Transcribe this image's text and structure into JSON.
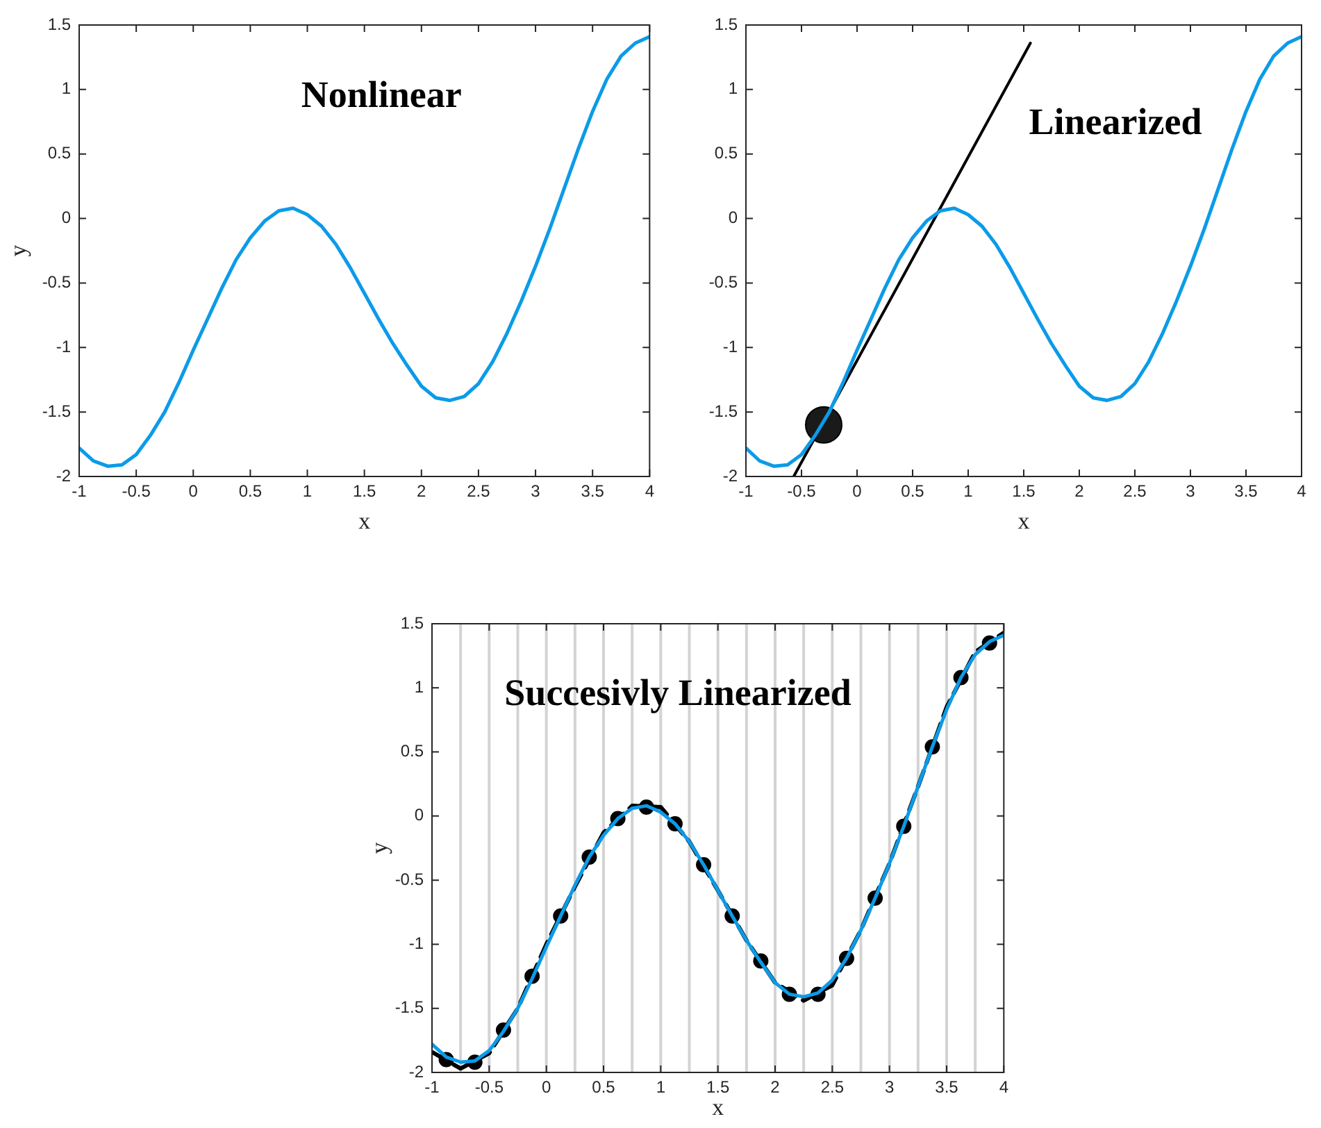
{
  "chart_data": [
    {
      "type": "line",
      "xlabel": "x",
      "ylabel": "y",
      "annotations": [
        "Nonlinear"
      ],
      "x": [
        -1,
        -0.875,
        -0.75,
        -0.625,
        -0.5,
        -0.375,
        -0.25,
        -0.125,
        0,
        0.125,
        0.25,
        0.375,
        0.5,
        0.625,
        0.75,
        0.875,
        1,
        1.125,
        1.25,
        1.375,
        1.5,
        1.625,
        1.75,
        1.875,
        2,
        2.125,
        2.25,
        2.375,
        2.5,
        2.625,
        2.75,
        2.875,
        3,
        3.125,
        3.25,
        3.375,
        3.5,
        3.625,
        3.75,
        3.875,
        4
      ],
      "series": [
        {
          "type": "line",
          "color": "#0b9be8",
          "marker": "none",
          "line_style": "solid",
          "values": [
            -1.78,
            -1.88,
            -1.92,
            -1.91,
            -1.83,
            -1.68,
            -1.5,
            -1.27,
            -1.02,
            -0.78,
            -0.54,
            -0.32,
            -0.15,
            -0.02,
            0.06,
            0.08,
            0.03,
            -0.06,
            -0.2,
            -0.38,
            -0.58,
            -0.78,
            -0.97,
            -1.14,
            -1.3,
            -1.39,
            -1.41,
            -1.38,
            -1.28,
            -1.11,
            -0.89,
            -0.64,
            -0.37,
            -0.08,
            0.23,
            0.54,
            0.83,
            1.08,
            1.26,
            1.36,
            1.41
          ]
        }
      ],
      "xlim": [
        -1,
        4
      ],
      "ylim": [
        -2,
        1.5
      ],
      "xticks": [
        -1,
        -0.5,
        0,
        0.5,
        1,
        1.5,
        2,
        2.5,
        3,
        3.5,
        4
      ],
      "yticks": [
        -2,
        -1.5,
        -1,
        -0.5,
        0,
        0.5,
        1,
        1.5
      ]
    },
    {
      "type": "line",
      "xlabel": "x",
      "annotations": [
        "Linearized"
      ],
      "x": [
        -1,
        -0.875,
        -0.75,
        -0.625,
        -0.5,
        -0.375,
        -0.25,
        -0.125,
        0,
        0.125,
        0.25,
        0.375,
        0.5,
        0.625,
        0.75,
        0.875,
        1,
        1.125,
        1.25,
        1.375,
        1.5,
        1.625,
        1.75,
        1.875,
        2,
        2.125,
        2.25,
        2.375,
        2.5,
        2.625,
        2.75,
        2.875,
        3,
        3.125,
        3.25,
        3.375,
        3.5,
        3.625,
        3.75,
        3.875,
        4
      ],
      "series": [
        {
          "type": "line",
          "color": "#0b9be8",
          "marker": "none",
          "line_style": "solid",
          "values": [
            -1.78,
            -1.88,
            -1.92,
            -1.91,
            -1.83,
            -1.68,
            -1.5,
            -1.27,
            -1.02,
            -0.78,
            -0.54,
            -0.32,
            -0.15,
            -0.02,
            0.06,
            0.08,
            0.03,
            -0.06,
            -0.2,
            -0.38,
            -0.58,
            -0.78,
            -0.97,
            -1.14,
            -1.3,
            -1.39,
            -1.41,
            -1.38,
            -1.28,
            -1.11,
            -0.89,
            -0.64,
            -0.37,
            -0.08,
            0.23,
            0.54,
            0.83,
            1.08,
            1.26,
            1.36,
            1.41
          ]
        },
        {
          "type": "line",
          "color": "#000000",
          "marker": "none",
          "line_style": "solid",
          "x": [
            -0.57,
            1.56
          ],
          "values": [
            -2,
            1.36
          ]
        },
        {
          "type": "scatter",
          "color": "#1a1a1a",
          "marker": "circle",
          "x": [
            -0.3
          ],
          "values": [
            -1.6
          ]
        }
      ],
      "xlim": [
        -1,
        4
      ],
      "ylim": [
        -2,
        1.5
      ],
      "xticks": [
        -1,
        -0.5,
        0,
        0.5,
        1,
        1.5,
        2,
        2.5,
        3,
        3.5,
        4
      ],
      "yticks": [
        -2,
        -1.5,
        -1,
        -0.5,
        0,
        0.5,
        1,
        1.5
      ]
    },
    {
      "type": "line",
      "xlabel": "x",
      "ylabel": "y",
      "annotations": [
        "Succesivly Linearized"
      ],
      "x": [
        -1,
        -0.875,
        -0.75,
        -0.625,
        -0.5,
        -0.375,
        -0.25,
        -0.125,
        0,
        0.125,
        0.25,
        0.375,
        0.5,
        0.625,
        0.75,
        0.875,
        1,
        1.125,
        1.25,
        1.375,
        1.5,
        1.625,
        1.75,
        1.875,
        2,
        2.125,
        2.25,
        2.375,
        2.5,
        2.625,
        2.75,
        2.875,
        3,
        3.125,
        3.25,
        3.375,
        3.5,
        3.625,
        3.75,
        3.875,
        4
      ],
      "series": [
        {
          "type": "line",
          "color": "#0b9be8",
          "marker": "none",
          "line_style": "solid",
          "values": [
            -1.78,
            -1.88,
            -1.92,
            -1.91,
            -1.83,
            -1.68,
            -1.5,
            -1.27,
            -1.02,
            -0.78,
            -0.54,
            -0.32,
            -0.15,
            -0.02,
            0.06,
            0.08,
            0.03,
            -0.06,
            -0.2,
            -0.38,
            -0.58,
            -0.78,
            -0.97,
            -1.14,
            -1.3,
            -1.39,
            -1.41,
            -1.38,
            -1.28,
            -1.11,
            -0.89,
            -0.64,
            -0.37,
            -0.08,
            0.23,
            0.54,
            0.83,
            1.08,
            1.26,
            1.36,
            1.41
          ]
        },
        {
          "type": "line",
          "color": "#000000",
          "marker": "none",
          "line_style": "dashed",
          "x": [
            -1,
            -0.75,
            -0.5,
            -0.25,
            0,
            0.25,
            0.5,
            0.75,
            1,
            1.25,
            1.5,
            1.75,
            2,
            2.25,
            2.5,
            2.75,
            3,
            3.25,
            3.5,
            3.75,
            4
          ],
          "values": [
            -1.84,
            -1.97,
            -1.85,
            -1.5,
            -1.0,
            -0.55,
            -0.13,
            0.08,
            0.07,
            -0.2,
            -0.58,
            -0.97,
            -1.3,
            -1.44,
            -1.32,
            -0.89,
            -0.37,
            0.23,
            0.85,
            1.28,
            1.43
          ]
        },
        {
          "type": "scatter",
          "color": "#000000",
          "marker": "circle",
          "x": [
            -0.875,
            -0.625,
            -0.375,
            -0.125,
            0.125,
            0.375,
            0.625,
            0.875,
            1.125,
            1.375,
            1.625,
            1.875,
            2.125,
            2.375,
            2.625,
            2.875,
            3.125,
            3.375,
            3.625,
            3.875
          ],
          "values": [
            -1.9,
            -1.92,
            -1.67,
            -1.25,
            -0.78,
            -0.32,
            -0.02,
            0.07,
            -0.06,
            -0.38,
            -0.78,
            -1.13,
            -1.39,
            -1.39,
            -1.11,
            -0.64,
            -0.08,
            0.54,
            1.08,
            1.35
          ]
        }
      ],
      "ref_lines": [
        {
          "axis": "x",
          "value": -0.75,
          "color": "#d3d3d3"
        },
        {
          "axis": "x",
          "value": -0.5,
          "color": "#d3d3d3"
        },
        {
          "axis": "x",
          "value": -0.25,
          "color": "#d3d3d3"
        },
        {
          "axis": "x",
          "value": 0,
          "color": "#d3d3d3"
        },
        {
          "axis": "x",
          "value": 0.25,
          "color": "#d3d3d3"
        },
        {
          "axis": "x",
          "value": 0.5,
          "color": "#d3d3d3"
        },
        {
          "axis": "x",
          "value": 0.75,
          "color": "#d3d3d3"
        },
        {
          "axis": "x",
          "value": 1,
          "color": "#d3d3d3"
        },
        {
          "axis": "x",
          "value": 1.25,
          "color": "#d3d3d3"
        },
        {
          "axis": "x",
          "value": 1.5,
          "color": "#d3d3d3"
        },
        {
          "axis": "x",
          "value": 1.75,
          "color": "#d3d3d3"
        },
        {
          "axis": "x",
          "value": 2,
          "color": "#d3d3d3"
        },
        {
          "axis": "x",
          "value": 2.25,
          "color": "#d3d3d3"
        },
        {
          "axis": "x",
          "value": 2.5,
          "color": "#d3d3d3"
        },
        {
          "axis": "x",
          "value": 2.75,
          "color": "#d3d3d3"
        },
        {
          "axis": "x",
          "value": 3,
          "color": "#d3d3d3"
        },
        {
          "axis": "x",
          "value": 3.25,
          "color": "#d3d3d3"
        },
        {
          "axis": "x",
          "value": 3.5,
          "color": "#d3d3d3"
        },
        {
          "axis": "x",
          "value": 3.75,
          "color": "#d3d3d3"
        }
      ],
      "xlim": [
        -1,
        4
      ],
      "ylim": [
        -2,
        1.5
      ],
      "xticks": [
        -1,
        -0.5,
        0,
        0.5,
        1,
        1.5,
        2,
        2.5,
        3,
        3.5,
        4
      ],
      "yticks": [
        -2,
        -1.5,
        -1,
        -0.5,
        0,
        0.5,
        1,
        1.5
      ]
    }
  ]
}
